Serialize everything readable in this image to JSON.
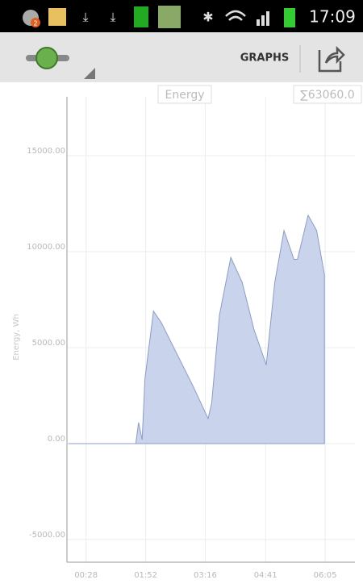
{
  "status_bar": {
    "time": "17:09",
    "notification_badge": "2"
  },
  "action_bar": {
    "button": "GRAPHS"
  },
  "chart_data": {
    "type": "area",
    "legend_title": "Energy",
    "total_label": "∑63060.0",
    "ylabel": "Energy, Wh",
    "color": "#c9d4ec",
    "x": [
      3,
      98,
      102,
      107,
      111,
      123,
      134,
      157,
      180,
      200,
      205,
      216,
      232,
      248,
      265,
      282,
      294,
      307,
      321,
      326,
      341,
      353,
      364
    ],
    "values": [
      0,
      0,
      1100,
      200,
      3400,
      6900,
      6300,
      4600,
      2900,
      1300,
      2100,
      6700,
      9700,
      8400,
      5900,
      4100,
      8400,
      11100,
      9600,
      9600,
      11900,
      11100,
      8800
    ],
    "xlim": [
      1,
      407
    ],
    "xticks": [
      {
        "value": 28,
        "label": "00:28"
      },
      {
        "value": 112,
        "label": "01:52"
      },
      {
        "value": 196,
        "label": "03:16"
      },
      {
        "value": 281,
        "label": "04:41"
      },
      {
        "value": 365,
        "label": "06:05"
      }
    ],
    "ylim": [
      -6180,
      18070
    ],
    "yticks": [
      {
        "value": -5000,
        "label": "-5000.00"
      },
      {
        "value": 0,
        "label": "0.00"
      },
      {
        "value": 5000,
        "label": "5000.00"
      },
      {
        "value": 10000,
        "label": "10000.00"
      },
      {
        "value": 15000,
        "label": "15000.00"
      }
    ],
    "grid": true
  }
}
